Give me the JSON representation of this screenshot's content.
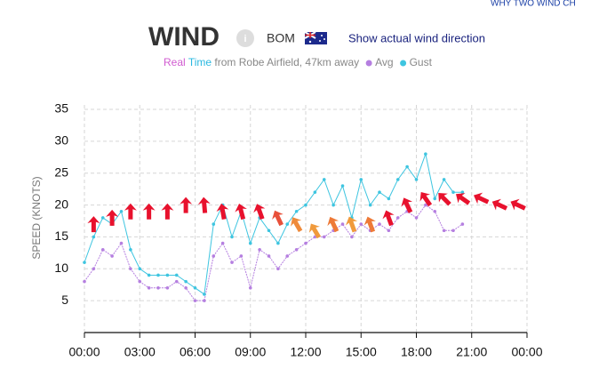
{
  "header": {
    "title": "WIND",
    "info": "i",
    "source": "BOM",
    "link": "Show actual wind direction",
    "corner_link": "WHY TWO WIND CH"
  },
  "chart_data": {
    "type": "line",
    "subtitle": {
      "real": "Real",
      "time": "Time",
      "rest": "from Robe Airfield, 47km away"
    },
    "ylabel": "SPEED (KNOTS)",
    "xlim": [
      0,
      24
    ],
    "xticks": [
      {
        "value": 0,
        "label": "00:00"
      },
      {
        "value": 3,
        "label": "03:00"
      },
      {
        "value": 6,
        "label": "06:00"
      },
      {
        "value": 9,
        "label": "09:00"
      },
      {
        "value": 12,
        "label": "12:00"
      },
      {
        "value": 15,
        "label": "15:00"
      },
      {
        "value": 18,
        "label": "18:00"
      },
      {
        "value": 21,
        "label": "21:00"
      },
      {
        "value": 24,
        "label": "00:00"
      }
    ],
    "ylim": [
      0,
      35
    ],
    "yticks": [
      5,
      10,
      15,
      20,
      25,
      30,
      35
    ],
    "grid": true,
    "x": [
      0,
      0.5,
      1,
      1.5,
      2,
      2.5,
      3,
      3.5,
      4,
      4.5,
      5,
      5.5,
      6,
      6.5,
      7,
      7.5,
      8,
      8.5,
      9,
      9.5,
      10,
      10.5,
      11,
      11.5,
      12,
      12.5,
      13,
      13.5,
      14,
      14.5,
      15,
      15.5,
      16,
      16.5,
      17,
      17.5,
      18,
      18.5,
      19,
      19.5,
      20,
      20.5
    ],
    "series": [
      {
        "name": "Avg",
        "color": "#b57fe0",
        "values": [
          8,
          10,
          13,
          12,
          14,
          10,
          8,
          7,
          7,
          7,
          8,
          7,
          5,
          5,
          12,
          14,
          11,
          12,
          7,
          13,
          12,
          10,
          12,
          13,
          14,
          15,
          15,
          16,
          17,
          15,
          17,
          16,
          17,
          16,
          18,
          19,
          18,
          20,
          19,
          16,
          16,
          17
        ]
      },
      {
        "name": "Gust",
        "color": "#3ec5e0",
        "values": [
          11,
          15,
          18,
          17,
          19,
          13,
          10,
          9,
          9,
          9,
          9,
          8,
          7,
          6,
          17,
          20,
          15,
          19,
          14,
          18,
          16,
          14,
          17,
          19,
          20,
          22,
          24,
          20,
          23,
          18,
          24,
          20,
          22,
          21,
          24,
          26,
          24,
          28,
          21,
          24,
          22,
          22
        ]
      }
    ],
    "forecast": {
      "x": [
        0.5,
        1.5,
        2.5,
        3.5,
        4.5,
        5.5,
        6.5,
        7.5,
        8.5,
        9.5,
        10.5,
        11.5,
        12.5,
        13.5,
        14.5,
        15.5,
        16.5,
        17.5,
        18.5,
        19.5,
        20.5,
        21.5,
        22.5,
        23.5
      ],
      "values": [
        17,
        18,
        19,
        19,
        19,
        20,
        20,
        19,
        19,
        19,
        18,
        17,
        16,
        17,
        17,
        17,
        18,
        20,
        21,
        21,
        21,
        21,
        20,
        20
      ],
      "direction": [
        0,
        0,
        0,
        0,
        0,
        0,
        -5,
        -10,
        -15,
        -20,
        -25,
        -30,
        -30,
        -25,
        -20,
        -20,
        -20,
        -25,
        -35,
        -45,
        -55,
        -65,
        -65,
        -65
      ],
      "colors": [
        "#e8112d",
        "#e8112d",
        "#e8112d",
        "#e8112d",
        "#e8112d",
        "#e8112d",
        "#e8112d",
        "#e8112d",
        "#e8112d",
        "#e8112d",
        "#e8503a",
        "#ef8a3a",
        "#f09a3c",
        "#ee7a38",
        "#f09a3c",
        "#ee7a38",
        "#e8112d",
        "#e8112d",
        "#e8112d",
        "#e8112d",
        "#e8112d",
        "#e8112d",
        "#e8112d",
        "#e8112d"
      ]
    }
  }
}
